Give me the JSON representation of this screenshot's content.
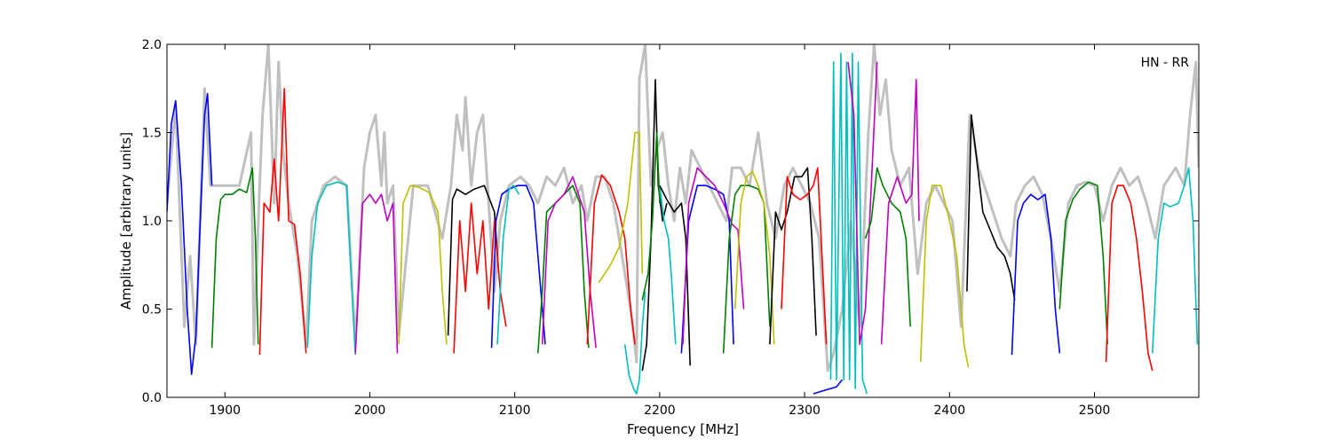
{
  "chart_data": {
    "type": "line",
    "title": "",
    "annotation": "HN - RR",
    "xlabel": "Frequency [MHz]",
    "ylabel": "Amplitude [arbitrary units]",
    "xlim": [
      1860,
      2572
    ],
    "ylim": [
      0.0,
      2.0
    ],
    "xticks": [
      1900,
      2000,
      2100,
      2200,
      2300,
      2400,
      2500
    ],
    "xtick_labels": [
      "1900",
      "2000",
      "2100",
      "2200",
      "2300",
      "2400",
      "2500"
    ],
    "yticks": [
      0.0,
      0.5,
      1.0,
      1.5,
      2.0
    ],
    "ytick_labels": [
      "0.0",
      "0.5",
      "1.0",
      "1.5",
      "2.0"
    ],
    "grid": false,
    "legend": "none",
    "background_trace_color": "#c0c0c0",
    "series": [
      {
        "color": "#0000ff",
        "x": [
          1860,
          1863,
          1866,
          1870,
          1874,
          1877,
          1880,
          1883,
          1886,
          1888,
          1891
        ],
        "y": [
          1.05,
          1.55,
          1.68,
          1.2,
          0.5,
          0.13,
          0.35,
          1.0,
          1.6,
          1.72,
          1.2
        ]
      },
      {
        "color": "#008000",
        "x": [
          1891,
          1894,
          1897,
          1900,
          1905,
          1910,
          1915,
          1919,
          1921,
          1923
        ],
        "y": [
          0.28,
          0.9,
          1.12,
          1.15,
          1.15,
          1.18,
          1.16,
          1.3,
          0.9,
          0.3
        ]
      },
      {
        "color": "#ff0000",
        "x": [
          1924,
          1927,
          1931,
          1934,
          1937,
          1941,
          1944,
          1948,
          1952,
          1956
        ],
        "y": [
          0.24,
          1.1,
          1.05,
          1.35,
          1.0,
          1.75,
          1.0,
          0.98,
          0.7,
          0.25
        ]
      },
      {
        "color": "#00bfbf",
        "x": [
          1957,
          1960,
          1964,
          1970,
          1978,
          1984,
          1987,
          1990
        ],
        "y": [
          0.28,
          0.8,
          1.1,
          1.2,
          1.22,
          1.2,
          0.7,
          0.24
        ]
      },
      {
        "color": "#bf00bf",
        "x": [
          1990,
          1995,
          2000,
          2004,
          2008,
          2012,
          2016,
          2019
        ],
        "y": [
          0.25,
          1.1,
          1.15,
          1.1,
          1.15,
          1.0,
          1.1,
          0.25
        ]
      },
      {
        "color": "#bfbf00",
        "x": [
          2020,
          2023,
          2028,
          2034,
          2041,
          2047,
          2050,
          2053
        ],
        "y": [
          0.3,
          1.1,
          1.2,
          1.19,
          1.16,
          1.05,
          0.6,
          0.3
        ]
      },
      {
        "color": "#000000",
        "x": [
          2054,
          2057,
          2060,
          2066,
          2072,
          2079,
          2086,
          2089
        ],
        "y": [
          0.35,
          1.12,
          1.18,
          1.15,
          1.18,
          1.2,
          1.05,
          0.7
        ]
      },
      {
        "color": "#ff0000",
        "x": [
          2058,
          2062,
          2066,
          2070,
          2074,
          2078,
          2082,
          2086,
          2090,
          2094
        ],
        "y": [
          0.25,
          1.0,
          0.6,
          1.1,
          0.7,
          1.0,
          0.5,
          1.0,
          0.6,
          0.4
        ]
      },
      {
        "color": "#0000ff",
        "x": [
          2084,
          2087,
          2091,
          2096,
          2102,
          2108,
          2113,
          2118,
          2121
        ],
        "y": [
          0.28,
          1.0,
          1.15,
          1.18,
          1.2,
          1.2,
          1.1,
          0.6,
          0.3
        ]
      },
      {
        "color": "#00bfbf",
        "x": [
          2088,
          2092,
          2096,
          2099,
          2103
        ],
        "y": [
          0.3,
          0.9,
          1.18,
          1.2,
          1.15
        ]
      },
      {
        "color": "#008000",
        "x": [
          2116,
          2119,
          2122,
          2128,
          2134,
          2140,
          2145,
          2148,
          2151
        ],
        "y": [
          0.25,
          0.6,
          1.05,
          1.1,
          1.15,
          1.2,
          1.1,
          0.6,
          0.28
        ]
      },
      {
        "color": "#bf00bf",
        "x": [
          2119,
          2123,
          2128,
          2134,
          2140,
          2144,
          2148,
          2152,
          2156
        ],
        "y": [
          0.3,
          1.0,
          1.1,
          1.15,
          1.25,
          1.15,
          1.05,
          0.6,
          0.28
        ]
      },
      {
        "color": "#ff0000",
        "x": [
          2150,
          2155,
          2160,
          2166,
          2172,
          2176,
          2180,
          2183
        ],
        "y": [
          0.3,
          1.1,
          1.26,
          1.2,
          1.05,
          0.9,
          0.5,
          0.3
        ]
      },
      {
        "color": "#bfbf00",
        "x": [
          2158,
          2162,
          2166,
          2172,
          2178,
          2183,
          2186,
          2188
        ],
        "y": [
          0.65,
          0.7,
          0.75,
          0.85,
          1.1,
          1.5,
          1.5,
          0.7
        ]
      },
      {
        "color": "#00bfbf",
        "x": [
          2176,
          2179,
          2182,
          2184,
          2186,
          2188,
          2190
        ],
        "y": [
          0.3,
          0.12,
          0.05,
          0.02,
          0.1,
          0.4,
          0.6
        ]
      },
      {
        "color": "#000000",
        "x": [
          2188,
          2191,
          2194,
          2197,
          2199,
          2202,
          2205
        ],
        "y": [
          0.15,
          0.3,
          0.9,
          1.8,
          1.2,
          1.0,
          1.1
        ]
      },
      {
        "color": "#008000",
        "x": [
          2188,
          2192,
          2195,
          2198,
          2200
        ],
        "y": [
          0.55,
          0.7,
          1.0,
          1.5,
          1.1
        ]
      },
      {
        "color": "#00bfbf",
        "x": [
          2200,
          2203,
          2206,
          2208,
          2211
        ],
        "y": [
          1.2,
          1.0,
          0.9,
          0.7,
          0.3
        ]
      },
      {
        "color": "#000000",
        "x": [
          2200,
          2205,
          2210,
          2215,
          2218,
          2221
        ],
        "y": [
          1.2,
          1.12,
          1.05,
          1.1,
          0.9,
          0.18
        ]
      },
      {
        "color": "#0000ff",
        "x": [
          2215,
          2220,
          2226,
          2232,
          2238,
          2244,
          2248,
          2251
        ],
        "y": [
          0.25,
          1.0,
          1.2,
          1.2,
          1.18,
          1.15,
          1.0,
          0.3
        ]
      },
      {
        "color": "#bf00bf",
        "x": [
          2216,
          2220,
          2226,
          2232,
          2238,
          2244,
          2250,
          2254,
          2258
        ],
        "y": [
          0.3,
          1.1,
          1.3,
          1.25,
          1.2,
          1.1,
          0.98,
          0.95,
          0.5
        ]
      },
      {
        "color": "#008000",
        "x": [
          2244,
          2248,
          2252,
          2256,
          2262,
          2268,
          2272,
          2276
        ],
        "y": [
          0.25,
          0.9,
          1.15,
          1.2,
          1.2,
          1.18,
          1.1,
          0.4
        ]
      },
      {
        "color": "#bfbf00",
        "x": [
          2252,
          2256,
          2260,
          2264,
          2268,
          2272,
          2276,
          2279
        ],
        "y": [
          0.5,
          1.1,
          1.25,
          1.28,
          1.2,
          1.1,
          0.8,
          0.3
        ]
      },
      {
        "color": "#000000",
        "x": [
          2276,
          2280,
          2284,
          2288,
          2293,
          2298,
          2302,
          2305,
          2308
        ],
        "y": [
          0.3,
          1.05,
          0.95,
          1.05,
          1.25,
          1.25,
          1.3,
          0.9,
          0.35
        ]
      },
      {
        "color": "#ff0000",
        "x": [
          2284,
          2288,
          2292,
          2297,
          2302,
          2306,
          2309,
          2312,
          2315
        ],
        "y": [
          0.5,
          1.25,
          1.15,
          1.12,
          1.15,
          1.2,
          1.3,
          0.8,
          0.3
        ]
      },
      {
        "color": "#0000ff",
        "x": [
          2306,
          2310,
          2314,
          2318,
          2322,
          2326
        ],
        "y": [
          0.02,
          0.03,
          0.04,
          0.05,
          0.06,
          0.1
        ]
      },
      {
        "color": "#00bfbf",
        "x": [
          2318,
          2320,
          2322,
          2325,
          2327,
          2329,
          2331,
          2333,
          2335,
          2337,
          2340,
          2343
        ],
        "y": [
          0.1,
          1.9,
          0.1,
          1.95,
          0.1,
          1.9,
          0.1,
          1.95,
          0.05,
          1.9,
          0.1,
          0.02
        ]
      },
      {
        "color": "#bf00bf",
        "x": [
          2330,
          2334,
          2338,
          2342,
          2346,
          2350
        ],
        "y": [
          1.9,
          1.6,
          0.3,
          0.5,
          1.2,
          1.9
        ]
      },
      {
        "color": "#008000",
        "x": [
          2342,
          2346,
          2350,
          2354,
          2360,
          2366,
          2370,
          2373
        ],
        "y": [
          0.9,
          1.0,
          1.3,
          1.2,
          1.1,
          1.05,
          0.9,
          0.4
        ]
      },
      {
        "color": "#bf00bf",
        "x": [
          2353,
          2358,
          2364,
          2370,
          2374,
          2377,
          2379
        ],
        "y": [
          0.3,
          1.1,
          1.25,
          1.1,
          1.15,
          1.8,
          1.0
        ]
      },
      {
        "color": "#bfbf00",
        "x": [
          2380,
          2384,
          2388,
          2394,
          2400,
          2405,
          2410,
          2413
        ],
        "y": [
          0.2,
          1.0,
          1.2,
          1.2,
          1.0,
          0.8,
          0.3,
          0.17
        ]
      },
      {
        "color": "#000000",
        "x": [
          2412,
          2415,
          2418,
          2423,
          2428,
          2433,
          2438,
          2442,
          2445
        ],
        "y": [
          0.6,
          1.6,
          1.4,
          1.05,
          0.95,
          0.85,
          0.8,
          0.7,
          0.55
        ]
      },
      {
        "color": "#0000ff",
        "x": [
          2443,
          2447,
          2451,
          2456,
          2461,
          2466,
          2470,
          2473,
          2476
        ],
        "y": [
          0.24,
          1.0,
          1.1,
          1.15,
          1.12,
          1.15,
          0.9,
          0.5,
          0.25
        ]
      },
      {
        "color": "#008000",
        "x": [
          2476,
          2480,
          2485,
          2490,
          2496,
          2502,
          2506,
          2509
        ],
        "y": [
          0.5,
          1.0,
          1.12,
          1.18,
          1.22,
          1.2,
          0.8,
          0.3
        ]
      },
      {
        "color": "#ff0000",
        "x": [
          2508,
          2512,
          2516,
          2520,
          2525,
          2529,
          2533,
          2537,
          2540
        ],
        "y": [
          0.2,
          1.1,
          1.2,
          1.2,
          1.1,
          0.9,
          0.6,
          0.25,
          0.15
        ]
      },
      {
        "color": "#00bfbf",
        "x": [
          2540,
          2544,
          2548,
          2552,
          2558,
          2562,
          2565,
          2568,
          2571
        ],
        "y": [
          0.25,
          0.9,
          1.1,
          1.08,
          1.1,
          1.2,
          1.3,
          1.0,
          0.3
        ]
      }
    ],
    "background_trace": {
      "x": [
        1860,
        1866,
        1872,
        1876,
        1880,
        1886,
        1890,
        1900,
        1910,
        1918,
        1920,
        1924,
        1926,
        1930,
        1934,
        1937,
        1940,
        1944,
        1950,
        1956,
        1960,
        1968,
        1976,
        1984,
        1990,
        1996,
        2000,
        2004,
        2008,
        2010,
        2012,
        2016,
        2020,
        2030,
        2040,
        2050,
        2056,
        2060,
        2064,
        2066,
        2070,
        2074,
        2078,
        2082,
        2086,
        2090,
        2096,
        2104,
        2110,
        2116,
        2122,
        2128,
        2134,
        2140,
        2146,
        2150,
        2156,
        2162,
        2168,
        2174,
        2180,
        2184,
        2186,
        2190,
        2194,
        2198,
        2202,
        2206,
        2210,
        2214,
        2218,
        2222,
        2228,
        2234,
        2240,
        2246,
        2250,
        2256,
        2262,
        2268,
        2274,
        2280,
        2286,
        2292,
        2298,
        2304,
        2310,
        2316,
        2320,
        2326,
        2332,
        2338,
        2344,
        2348,
        2352,
        2356,
        2360,
        2366,
        2372,
        2378,
        2384,
        2390,
        2396,
        2402,
        2408,
        2414,
        2420,
        2428,
        2436,
        2442,
        2446,
        2452,
        2458,
        2464,
        2470,
        2476,
        2482,
        2488,
        2494,
        2500,
        2506,
        2512,
        2518,
        2524,
        2530,
        2536,
        2542,
        2548,
        2556,
        2562,
        2566,
        2570,
        2572
      ],
      "y": [
        1.1,
        1.65,
        0.4,
        0.8,
        0.3,
        1.75,
        1.2,
        1.2,
        1.2,
        1.5,
        0.3,
        1.2,
        1.6,
        2.0,
        1.1,
        1.9,
        1.4,
        1.1,
        0.8,
        0.3,
        1.0,
        1.2,
        1.25,
        1.2,
        0.3,
        1.3,
        1.5,
        1.6,
        1.2,
        1.5,
        1.1,
        1.2,
        0.35,
        1.2,
        1.2,
        0.9,
        1.2,
        1.6,
        1.4,
        1.7,
        1.2,
        1.5,
        1.6,
        1.1,
        0.6,
        1.0,
        1.2,
        1.25,
        1.2,
        1.1,
        1.25,
        1.2,
        1.3,
        1.1,
        1.2,
        1.0,
        1.25,
        1.25,
        1.1,
        0.8,
        0.5,
        0.2,
        1.8,
        2.0,
        1.2,
        1.4,
        1.5,
        1.2,
        1.0,
        1.3,
        1.1,
        1.4,
        1.3,
        1.2,
        1.1,
        1.0,
        1.3,
        1.3,
        1.2,
        1.5,
        1.1,
        0.9,
        1.2,
        1.3,
        1.2,
        1.1,
        0.9,
        0.15,
        0.25,
        0.5,
        1.0,
        0.4,
        1.5,
        2.0,
        1.6,
        1.8,
        1.4,
        1.2,
        1.3,
        0.7,
        1.1,
        1.2,
        1.1,
        1.0,
        0.4,
        1.6,
        1.3,
        1.1,
        0.9,
        0.8,
        1.1,
        1.2,
        1.25,
        1.15,
        0.9,
        0.6,
        1.1,
        1.2,
        1.22,
        1.2,
        1.0,
        1.2,
        1.3,
        1.2,
        1.25,
        1.1,
        0.9,
        1.2,
        1.3,
        1.2,
        1.6,
        1.9,
        1.3
      ]
    }
  }
}
